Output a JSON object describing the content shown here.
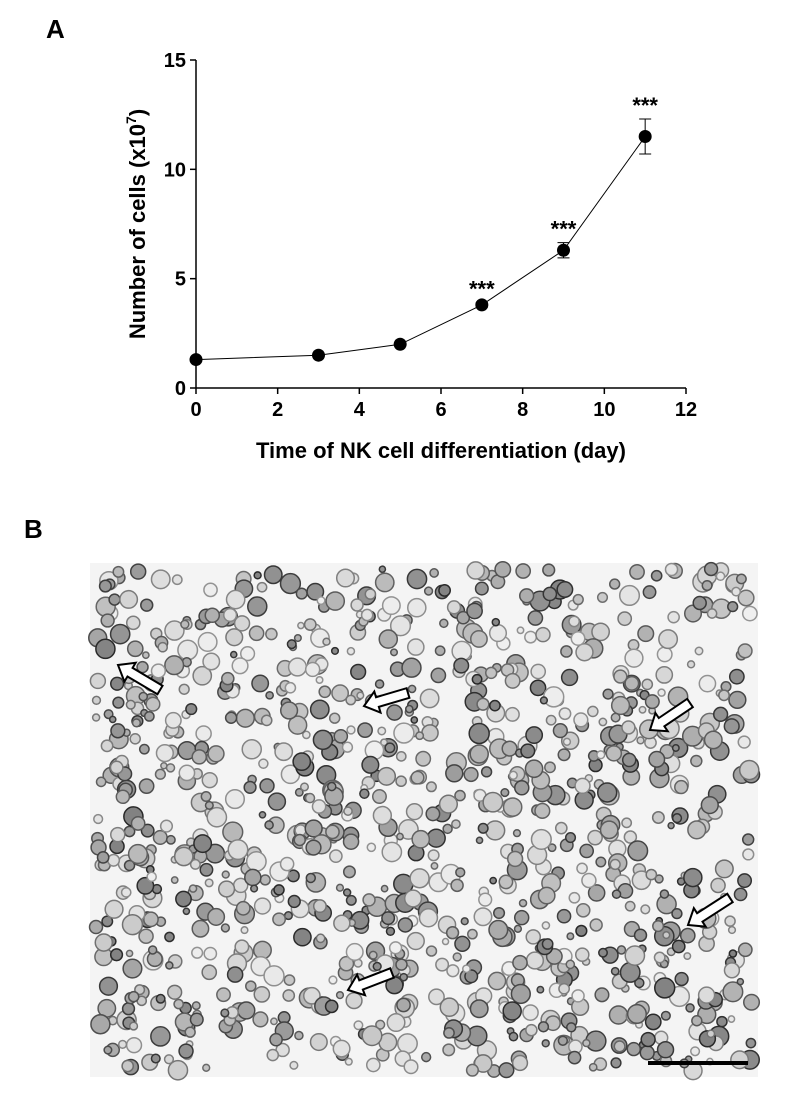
{
  "panels": [
    "A",
    "B"
  ],
  "chart_data": {
    "type": "line",
    "xlabel": "Time of NK cell differentiation (day)",
    "ylabel": [
      "Number of cells (x10",
      "7",
      ")"
    ],
    "x": [
      0,
      3,
      5,
      7,
      9,
      11
    ],
    "values": [
      1.3,
      1.5,
      2.0,
      3.8,
      6.3,
      11.5
    ],
    "errors": [
      0.05,
      0.05,
      0.05,
      0.1,
      0.35,
      0.8
    ],
    "color": "#000000",
    "xlim": [
      0,
      12
    ],
    "xticks": [
      0,
      2,
      4,
      6,
      8,
      10,
      12
    ],
    "ylim": [
      0,
      15
    ],
    "yticks": [
      0,
      5,
      10,
      15
    ],
    "annotations": [
      {
        "x": 7,
        "text": "***"
      },
      {
        "x": 9,
        "text": "***"
      },
      {
        "x": 11,
        "text": "***"
      }
    ]
  }
}
